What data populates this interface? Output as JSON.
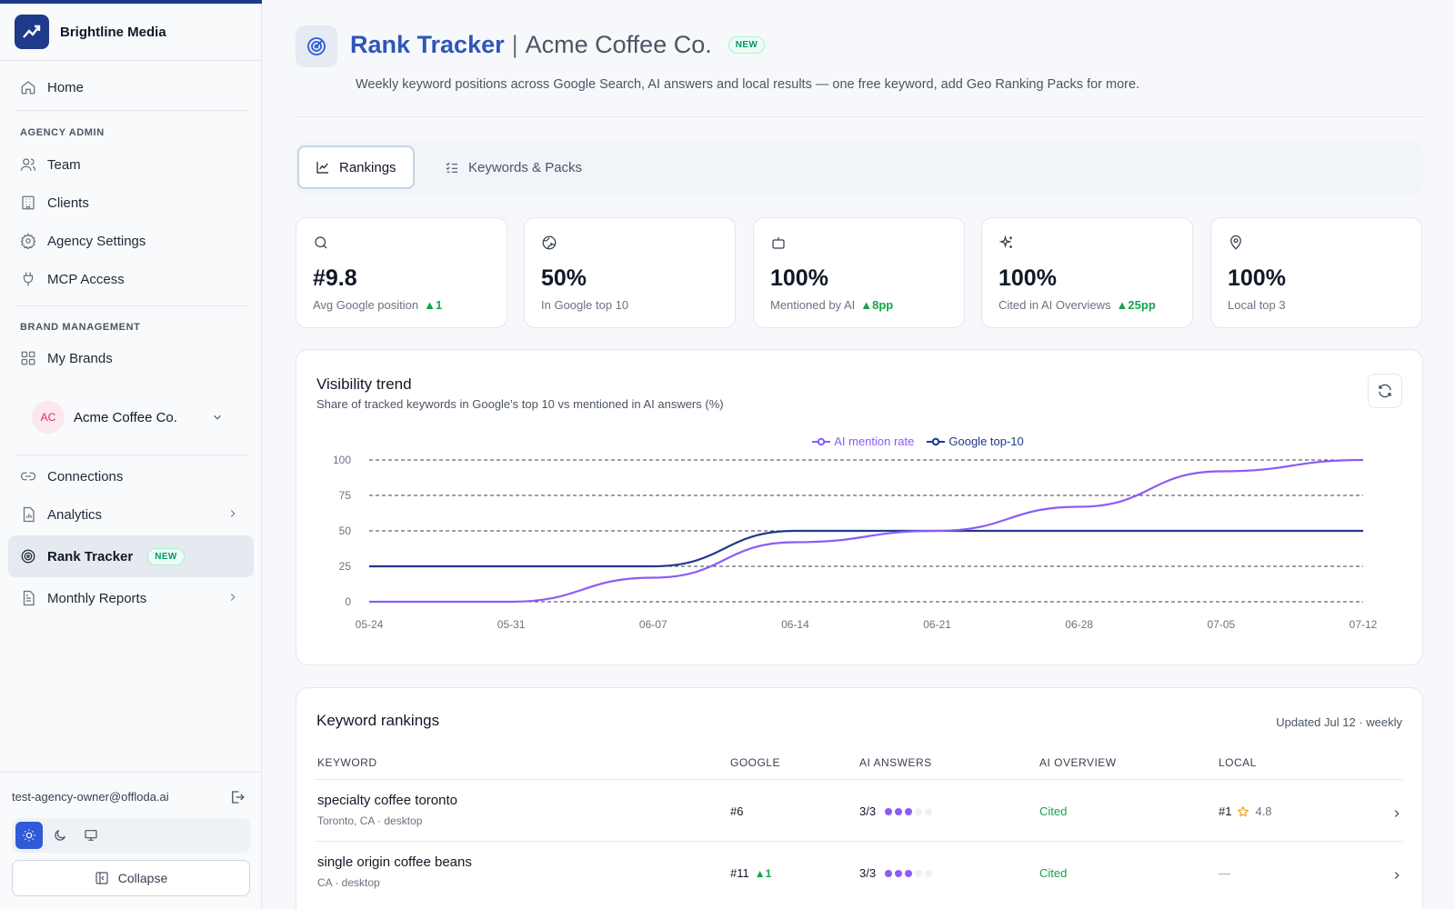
{
  "sidebar": {
    "brand_name": "Brightline Media",
    "items": {
      "home": "Home",
      "team": "Team",
      "clients": "Clients",
      "agency_settings": "Agency Settings",
      "mcp_access": "MCP Access",
      "my_brands": "My Brands",
      "connections": "Connections",
      "analytics": "Analytics",
      "rank_tracker": "Rank Tracker",
      "monthly_reports": "Monthly Reports"
    },
    "sections": {
      "agency_admin": "AGENCY ADMIN",
      "brand_management": "BRAND MANAGEMENT"
    },
    "brand_selector": {
      "initials": "AC",
      "name": "Acme Coffee Co."
    },
    "new_badge": "NEW",
    "user_email": "test-agency-owner@offloda.ai",
    "collapse_label": "Collapse",
    "theme_selected": "light"
  },
  "header": {
    "title": "Rank Tracker",
    "separator": "|",
    "brand": "Acme Coffee Co.",
    "badge": "NEW",
    "subtitle": "Weekly keyword positions across Google Search, AI answers and local results — one free keyword, add Geo Ranking Packs for more."
  },
  "tabs": [
    {
      "label": "Rankings",
      "icon": "line-chart-icon",
      "active": true
    },
    {
      "label": "Keywords & Packs",
      "icon": "list-check-icon",
      "active": false
    }
  ],
  "stats": [
    {
      "icon": "search-icon",
      "value": "#9.8",
      "label": "Avg Google position",
      "delta": "▲1"
    },
    {
      "icon": "globe-icon",
      "value": "50%",
      "label": "In Google top 10",
      "delta": ""
    },
    {
      "icon": "bot-icon",
      "value": "100%",
      "label": "Mentioned by AI",
      "delta": "▲8pp"
    },
    {
      "icon": "sparkles-icon",
      "value": "100%",
      "label": "Cited in AI Overviews",
      "delta": "▲25pp"
    },
    {
      "icon": "map-pin-icon",
      "value": "100%",
      "label": "Local top 3",
      "delta": ""
    }
  ],
  "visibility": {
    "title": "Visibility trend",
    "subtitle": "Share of tracked keywords in Google's top 10 vs mentioned in AI answers (%)"
  },
  "chart_data": {
    "type": "line",
    "x": [
      "05-24",
      "05-31",
      "06-07",
      "06-14",
      "06-21",
      "06-28",
      "07-05",
      "07-12"
    ],
    "y_ticks": [
      0,
      25,
      50,
      75,
      100
    ],
    "ylim": [
      0,
      100
    ],
    "grid": "dashed horizontal",
    "legend_position": "top-center",
    "series": [
      {
        "name": "AI mention rate",
        "color": "#8b5cf6",
        "values": [
          0,
          0,
          17,
          42,
          50,
          67,
          92,
          100
        ]
      },
      {
        "name": "Google top-10",
        "color": "#1e3a8a",
        "values": [
          25,
          25,
          25,
          50,
          50,
          50,
          50,
          50
        ]
      }
    ]
  },
  "rankings": {
    "title": "Keyword rankings",
    "updated": "Updated Jul 12 · weekly",
    "columns": [
      "KEYWORD",
      "GOOGLE",
      "AI ANSWERS",
      "AI OVERVIEW",
      "LOCAL"
    ],
    "rows": [
      {
        "keyword": "specialty coffee toronto",
        "meta": "Toronto, CA · desktop",
        "google": "#6",
        "google_delta": "",
        "ai_answers": "3/3",
        "ai_score": 3,
        "ai_overview": "Cited",
        "local": "#1",
        "rating": "4.8"
      },
      {
        "keyword": "single origin coffee beans",
        "meta": "CA · desktop",
        "google": "#11",
        "google_delta": "▲1",
        "ai_answers": "3/3",
        "ai_score": 3,
        "ai_overview": "Cited",
        "local": "—",
        "rating": ""
      }
    ]
  }
}
